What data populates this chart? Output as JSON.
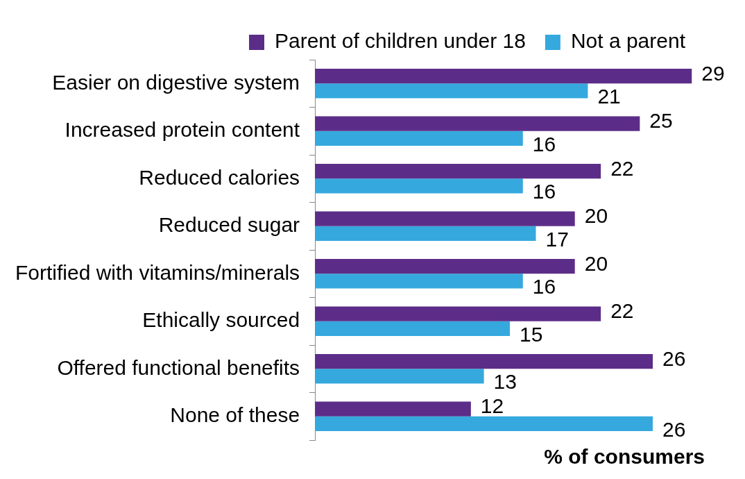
{
  "chart_data": {
    "type": "bar",
    "orientation": "horizontal",
    "xlabel": "% of consumers",
    "categories": [
      "Easier on digestive system",
      "Increased protein content",
      "Reduced calories",
      "Reduced sugar",
      "Fortified with vitamins/minerals",
      "Ethically sourced",
      "Offered functional benefits",
      "None of these"
    ],
    "series": [
      {
        "name": "Parent of children under 18",
        "color": "#5c2d88",
        "values": [
          29,
          25,
          22,
          20,
          20,
          22,
          26,
          12
        ]
      },
      {
        "name": "Not a parent",
        "color": "#35a9dd",
        "values": [
          21,
          16,
          16,
          17,
          16,
          15,
          13,
          26
        ]
      }
    ],
    "data_labels": true,
    "legend": "top",
    "tick_labels": "y"
  }
}
